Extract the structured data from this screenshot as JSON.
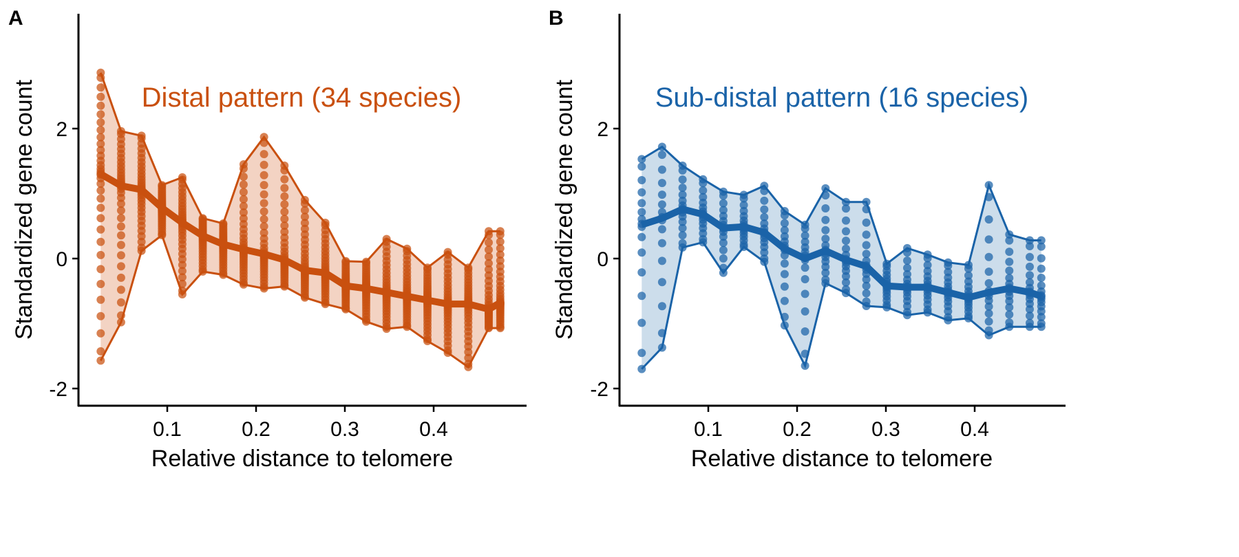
{
  "chart_data": [
    {
      "panel": "A",
      "type": "scatter",
      "title": "Distal pattern (34 species)",
      "xlabel": "Relative distance to telomere",
      "ylabel": "Standardized gene count",
      "color": "#C9500F",
      "ribbon_color": "#F3D3C3",
      "xlim": [
        0.0,
        0.5
      ],
      "ylim": [
        -2.3,
        3.6
      ],
      "x_ticks": [
        0.1,
        0.2,
        0.3,
        0.4
      ],
      "x_tick_labels": [
        "0.1",
        "0.2",
        "0.3",
        "0.4"
      ],
      "y_ticks": [
        -2,
        0,
        2
      ],
      "y_tick_labels": [
        "-2",
        "0",
        "2"
      ],
      "x": [
        0.025,
        0.048,
        0.071,
        0.094,
        0.117,
        0.14,
        0.163,
        0.186,
        0.209,
        0.232,
        0.255,
        0.278,
        0.301,
        0.324,
        0.347,
        0.37,
        0.393,
        0.416,
        0.439,
        0.462,
        0.475
      ],
      "mean": [
        1.3,
        1.12,
        1.06,
        0.78,
        0.55,
        0.35,
        0.22,
        0.14,
        0.07,
        -0.02,
        -0.18,
        -0.22,
        -0.42,
        -0.46,
        -0.52,
        -0.58,
        -0.64,
        -0.7,
        -0.7,
        -0.78,
        -0.68
      ],
      "max": [
        2.86,
        1.96,
        1.89,
        1.13,
        1.25,
        0.62,
        0.54,
        1.45,
        1.87,
        1.43,
        0.9,
        0.55,
        -0.04,
        -0.05,
        0.3,
        0.15,
        -0.14,
        0.1,
        -0.14,
        0.42,
        0.42
      ],
      "min": [
        -1.57,
        -0.98,
        0.12,
        0.36,
        -0.55,
        -0.2,
        -0.25,
        -0.4,
        -0.46,
        -0.43,
        -0.6,
        -0.7,
        -0.78,
        -0.97,
        -1.08,
        -1.05,
        -1.27,
        -1.45,
        -1.67,
        -1.07,
        -1.07
      ],
      "points_per_position": 34
    },
    {
      "panel": "B",
      "type": "scatter",
      "title": "Sub-distal pattern (16 species)",
      "xlabel": "Relative distance to telomere",
      "ylabel": "Standardized gene count",
      "color": "#1A63A8",
      "ribbon_color": "#CCDDEB",
      "xlim": [
        0.0,
        0.5
      ],
      "ylim": [
        -2.3,
        3.6
      ],
      "x_ticks": [
        0.1,
        0.2,
        0.3,
        0.4
      ],
      "x_tick_labels": [
        "0.1",
        "0.2",
        "0.3",
        "0.4"
      ],
      "y_ticks": [
        -2,
        0,
        2
      ],
      "y_tick_labels": [
        "-2",
        "0",
        "2"
      ],
      "x": [
        0.025,
        0.048,
        0.071,
        0.094,
        0.117,
        0.14,
        0.163,
        0.186,
        0.209,
        0.232,
        0.255,
        0.278,
        0.301,
        0.324,
        0.347,
        0.37,
        0.393,
        0.416,
        0.439,
        0.462,
        0.475
      ],
      "mean": [
        0.52,
        0.62,
        0.76,
        0.68,
        0.47,
        0.49,
        0.4,
        0.15,
        0.0,
        0.12,
        -0.02,
        -0.12,
        -0.42,
        -0.44,
        -0.44,
        -0.52,
        -0.6,
        -0.52,
        -0.46,
        -0.52,
        -0.58
      ],
      "max": [
        1.53,
        1.72,
        1.43,
        1.22,
        1.03,
        0.98,
        1.12,
        0.73,
        0.52,
        1.08,
        0.87,
        0.87,
        -0.08,
        0.16,
        0.06,
        -0.06,
        -0.1,
        1.13,
        0.37,
        0.28,
        0.28
      ],
      "min": [
        -1.7,
        -1.37,
        0.17,
        0.25,
        -0.22,
        0.18,
        -0.05,
        -1.03,
        -1.65,
        -0.38,
        -0.53,
        -0.73,
        -0.75,
        -0.87,
        -0.83,
        -0.95,
        -0.92,
        -1.18,
        -1.05,
        -1.05,
        -1.05
      ],
      "points_per_position": 16
    }
  ]
}
